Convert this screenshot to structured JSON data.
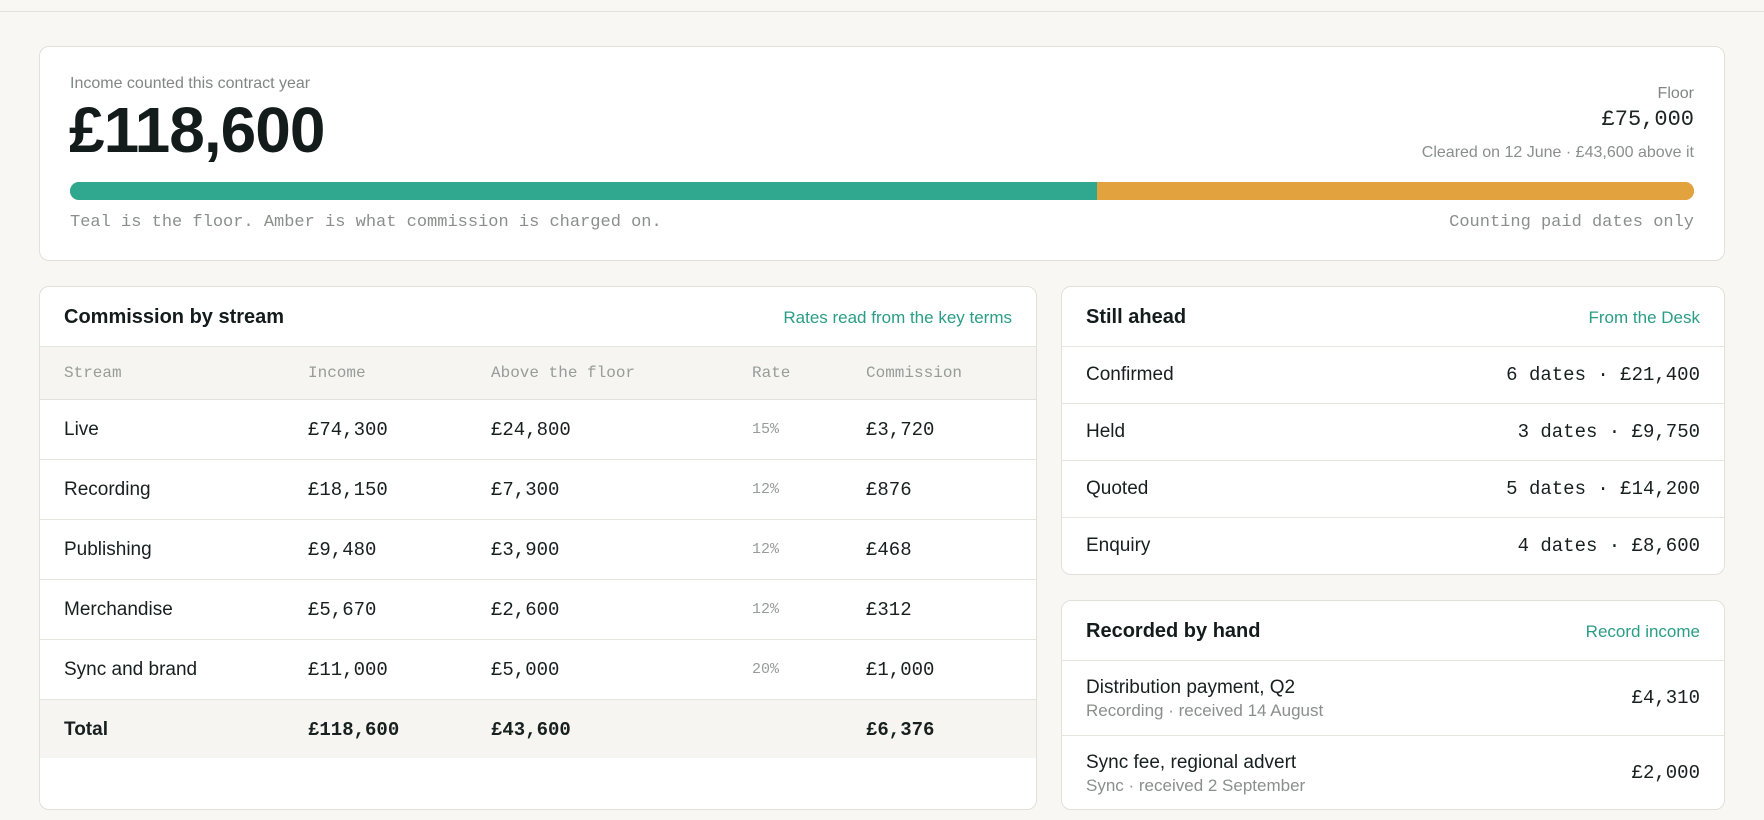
{
  "summary": {
    "label": "Income counted this contract year",
    "value": "£118,600",
    "floor_label": "Floor",
    "floor_value": "£75,000",
    "floor_note": "Cleared on 12 June · £43,600 above it",
    "bar": {
      "total": 118600,
      "floor": 75000,
      "floor_color": "#2fa88f",
      "above_color": "#e2a33f"
    },
    "bar_note_left": "Teal is the floor. Amber is what commission is charged on.",
    "bar_note_right": "Counting paid dates only"
  },
  "commission": {
    "title": "Commission by stream",
    "link": "Rates read from the key terms",
    "headers": [
      "Stream",
      "Income",
      "Above the floor",
      "Rate",
      "Commission"
    ],
    "rows": [
      {
        "stream": "Live",
        "income": "£74,300",
        "above": "£24,800",
        "rate": "15%",
        "commission": "£3,720"
      },
      {
        "stream": "Recording",
        "income": "£18,150",
        "above": "£7,300",
        "rate": "12%",
        "commission": "£876"
      },
      {
        "stream": "Publishing",
        "income": "£9,480",
        "above": "£3,900",
        "rate": "12%",
        "commission": "£468"
      },
      {
        "stream": "Merchandise",
        "income": "£5,670",
        "above": "£2,600",
        "rate": "12%",
        "commission": "£312"
      },
      {
        "stream": "Sync and brand",
        "income": "£11,000",
        "above": "£5,000",
        "rate": "20%",
        "commission": "£1,000"
      }
    ],
    "total": {
      "stream": "Total",
      "income": "£118,600",
      "above": "£43,600",
      "commission": "£6,376"
    }
  },
  "ahead": {
    "title": "Still ahead",
    "link": "From the Desk",
    "rows": [
      {
        "label": "Confirmed",
        "value": "6 dates · £21,400"
      },
      {
        "label": "Held",
        "value": "3 dates · £9,750"
      },
      {
        "label": "Quoted",
        "value": "5 dates · £14,200"
      },
      {
        "label": "Enquiry",
        "value": "4 dates · £8,600"
      }
    ]
  },
  "recorded": {
    "title": "Recorded by hand",
    "link": "Record income",
    "rows": [
      {
        "title": "Distribution payment, Q2",
        "sub": "Recording · received 14 August",
        "value": "£4,310"
      },
      {
        "title": "Sync fee, regional advert",
        "sub": "Sync · received 2 September",
        "value": "£2,000"
      }
    ]
  }
}
